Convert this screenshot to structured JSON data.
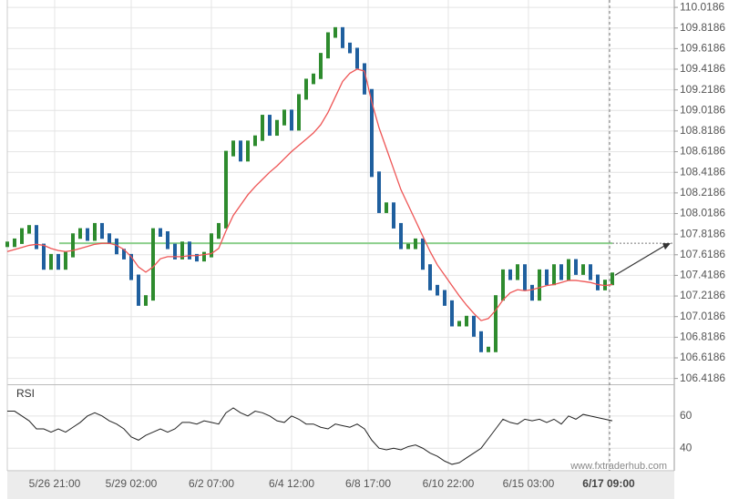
{
  "chart_data": {
    "type": "line",
    "xlim": [
      0,
      91.5
    ],
    "xticks": [
      {
        "value": 6.5,
        "label": "5/26 21:00"
      },
      {
        "value": 17,
        "label": "5/29 02:00"
      },
      {
        "value": 28,
        "label": "6/2 07:00"
      },
      {
        "value": 39,
        "label": "6/4 12:00"
      },
      {
        "value": 49.5,
        "label": "6/8 17:00"
      },
      {
        "value": 60.5,
        "label": "6/10 22:00"
      },
      {
        "value": 71.5,
        "label": "6/15 03:00"
      },
      {
        "value": 82.5,
        "label": "6/17 09:00"
      }
    ],
    "ylim": [
      106.38,
      110.09
    ],
    "yticks": [
      106.4186,
      106.6186,
      106.8186,
      107.0186,
      107.2186,
      107.4186,
      107.6186,
      107.8186,
      108.0186,
      108.2186,
      108.4186,
      108.6186,
      108.8186,
      109.0186,
      109.2186,
      109.4186,
      109.6186,
      109.8186,
      110.0186
    ],
    "grid": true,
    "level": 107.73,
    "level_color": "#8ccf8c",
    "up_color": "#2e8b2e",
    "down_color": "#1f5f9e",
    "price": {
      "values": [
        107.72,
        107.75,
        107.85,
        107.88,
        107.7,
        107.5,
        107.6,
        107.5,
        107.62,
        107.8,
        107.85,
        107.78,
        107.9,
        107.8,
        107.75,
        107.65,
        107.6,
        107.4,
        107.15,
        107.2,
        107.85,
        107.82,
        107.7,
        107.6,
        107.72,
        107.6,
        107.58,
        107.62,
        107.8,
        107.9,
        108.6,
        108.7,
        108.55,
        108.7,
        108.75,
        108.95,
        108.8,
        108.9,
        109.0,
        108.85,
        109.15,
        109.3,
        109.35,
        109.55,
        109.75,
        109.8,
        109.65,
        109.6,
        109.45,
        109.2,
        108.4,
        108.05,
        108.1,
        107.9,
        107.7,
        107.7,
        107.75,
        107.5,
        107.3,
        107.25,
        107.15,
        106.95,
        106.95,
        107.0,
        106.85,
        106.7,
        106.7,
        107.2,
        107.45,
        107.4,
        107.5,
        107.3,
        107.2,
        107.45,
        107.35,
        107.5,
        107.4,
        107.55,
        107.45,
        107.5,
        107.4,
        107.3,
        107.35,
        107.42
      ]
    },
    "ma": {
      "color": "#ee5555",
      "values": [
        107.65,
        107.67,
        107.69,
        107.71,
        107.72,
        107.71,
        107.68,
        107.66,
        107.65,
        107.66,
        107.68,
        107.7,
        107.72,
        107.73,
        107.73,
        107.71,
        107.67,
        107.6,
        107.5,
        107.45,
        107.5,
        107.58,
        107.6,
        107.6,
        107.6,
        107.61,
        107.61,
        107.62,
        107.63,
        107.68,
        107.85,
        108.0,
        108.1,
        108.2,
        108.28,
        108.35,
        108.42,
        108.48,
        108.55,
        108.62,
        108.68,
        108.74,
        108.8,
        108.88,
        109.0,
        109.15,
        109.3,
        109.38,
        109.42,
        109.4,
        109.1,
        108.85,
        108.65,
        108.45,
        108.25,
        108.1,
        107.95,
        107.8,
        107.65,
        107.52,
        107.42,
        107.32,
        107.22,
        107.13,
        107.05,
        106.98,
        107.0,
        107.08,
        107.18,
        107.25,
        107.28,
        107.27,
        107.28,
        107.3,
        107.32,
        107.33,
        107.35,
        107.37,
        107.37,
        107.36,
        107.35,
        107.33,
        107.32,
        107.33
      ]
    },
    "rsi": {
      "label": "RSI",
      "color": "#222222",
      "ylim": [
        26,
        78
      ],
      "yticks": [
        40,
        60
      ],
      "values": [
        63,
        63,
        60,
        57,
        52,
        52,
        50,
        52,
        50,
        53,
        56,
        60,
        62,
        60,
        57,
        55,
        52,
        47,
        45,
        48,
        50,
        52,
        50,
        52,
        56,
        56,
        55,
        57,
        56,
        55,
        62,
        65,
        62,
        60,
        63,
        62,
        60,
        57,
        56,
        60,
        58,
        55,
        55,
        53,
        52,
        55,
        54,
        53,
        55,
        52,
        45,
        40,
        39,
        40,
        39,
        41,
        42,
        40,
        37,
        35,
        32,
        30,
        31,
        34,
        37,
        40,
        46,
        52,
        58,
        56,
        55,
        58,
        57,
        58,
        56,
        58,
        55,
        60,
        58,
        61,
        60,
        59,
        58,
        57
      ]
    },
    "watermark": "www.fxtraderhub.com"
  }
}
